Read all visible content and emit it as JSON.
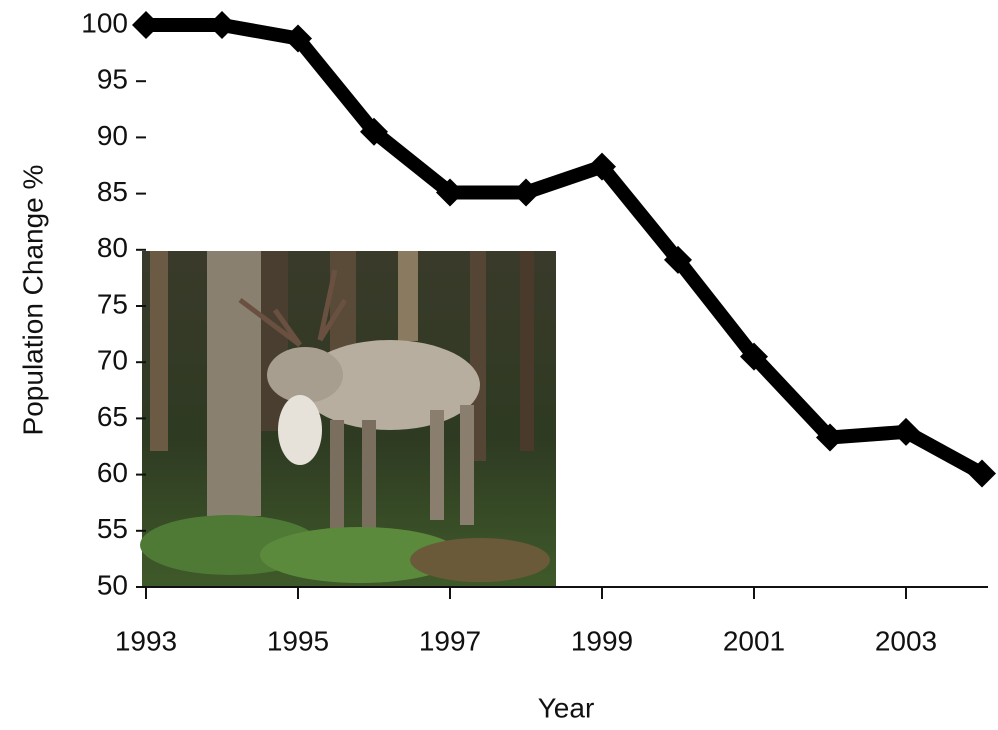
{
  "chart_data": {
    "type": "line",
    "x_label": "Year",
    "y_label": "Population Change %",
    "x": [
      1993,
      1994,
      1995,
      1996,
      1997,
      1998,
      1999,
      2000,
      2001,
      2002,
      2003,
      2004
    ],
    "values": [
      100,
      100,
      98.8,
      90.5,
      85.1,
      85.1,
      87.4,
      79.1,
      70.5,
      63.3,
      63.8,
      60.1
    ],
    "color": "#000000",
    "xlim": [
      1993,
      2004
    ],
    "xticks": [
      1993,
      1995,
      1997,
      1999,
      2001,
      2003
    ],
    "ylim": [
      50,
      100
    ],
    "yticks": [
      50,
      55,
      60,
      65,
      70,
      75,
      80,
      85,
      90,
      95,
      100
    ]
  }
}
